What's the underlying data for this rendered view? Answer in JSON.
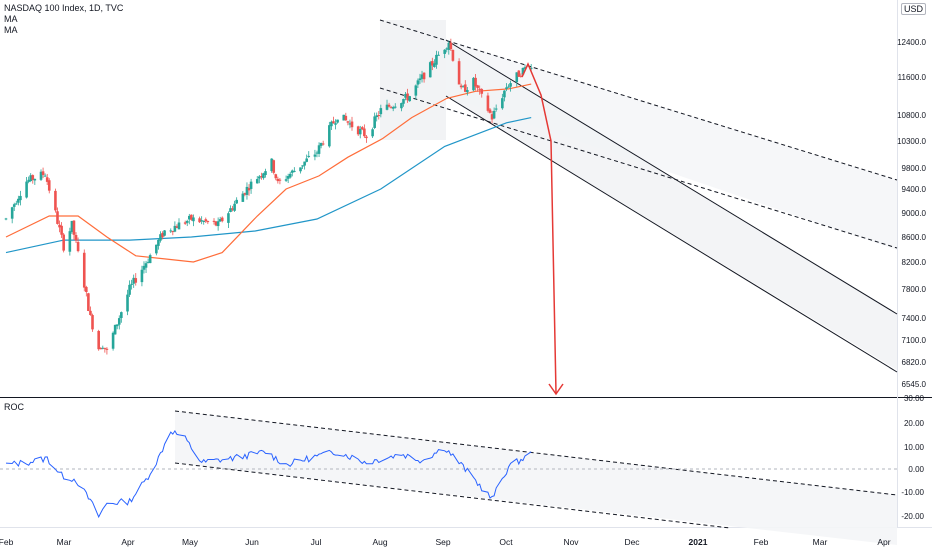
{
  "header": {
    "symbol_line": "NASDAQ 100 Index, 1D, TVC",
    "ma1_label": "MA",
    "ma2_label": "MA",
    "currency_badge": "USD",
    "roc_label": "ROC"
  },
  "colors": {
    "up": "#26a69a",
    "down": "#ef5350",
    "ma_fast": "#ff6d3a",
    "ma_slow": "#2196c8",
    "roc_line": "#2962ff",
    "arrow": "#e53935",
    "channel_line": "#131722",
    "axis_text": "#131722",
    "zero_line": "#b2b5be",
    "fill": "#eeeff1"
  },
  "chart_data": [
    {
      "type": "candlestick",
      "title": "NASDAQ 100 Index, 1D, TVC",
      "y_ticks": [
        "12400.0",
        "11600.0",
        "10800.0",
        "10300.0",
        "9800.0",
        "9400.0",
        "9000.0",
        "8600.0",
        "8200.0",
        "7800.0",
        "7400.0",
        "7100.0",
        "6820.0",
        "6545.0"
      ],
      "x_ticks": [
        "Feb",
        "Mar",
        "Apr",
        "May",
        "Jun",
        "Jul",
        "Aug",
        "Sep",
        "Oct",
        "Nov",
        "Dec",
        "2021",
        "Feb",
        "Mar",
        "Apr"
      ],
      "price_path": [
        [
          "2020-01-31",
          8900
        ],
        [
          "2020-02-10",
          9550
        ],
        [
          "2020-02-19",
          9700
        ],
        [
          "2020-02-21",
          9400
        ],
        [
          "2020-02-28",
          8450
        ],
        [
          "2020-03-03",
          8800
        ],
        [
          "2020-03-12",
          7400
        ],
        [
          "2020-03-16",
          7000
        ],
        [
          "2020-03-18",
          7050
        ],
        [
          "2020-03-20",
          6950
        ],
        [
          "2020-03-31",
          7800
        ],
        [
          "2020-04-09",
          8250
        ],
        [
          "2020-04-17",
          8700
        ],
        [
          "2020-04-30",
          8900
        ],
        [
          "2020-05-13",
          8800
        ],
        [
          "2020-05-29",
          9500
        ],
        [
          "2020-06-08",
          9900
        ],
        [
          "2020-06-11",
          9500
        ],
        [
          "2020-06-30",
          10100
        ],
        [
          "2020-07-10",
          10800
        ],
        [
          "2020-07-24",
          10400
        ],
        [
          "2020-07-31",
          10900
        ],
        [
          "2020-08-14",
          11200
        ],
        [
          "2020-08-28",
          12100
        ],
        [
          "2020-09-02",
          12420
        ],
        [
          "2020-09-08",
          11300
        ],
        [
          "2020-09-14",
          11500
        ],
        [
          "2020-09-23",
          10750
        ],
        [
          "2020-09-30",
          11400
        ],
        [
          "2020-10-09",
          11800
        ],
        [
          "2020-10-12",
          11900
        ]
      ],
      "ma_fast": [
        [
          "2020-01-31",
          8600
        ],
        [
          "2020-02-21",
          8950
        ],
        [
          "2020-03-06",
          8950
        ],
        [
          "2020-03-20",
          8600
        ],
        [
          "2020-04-03",
          8300
        ],
        [
          "2020-04-17",
          8250
        ],
        [
          "2020-05-01",
          8200
        ],
        [
          "2020-05-15",
          8350
        ],
        [
          "2020-06-01",
          8950
        ],
        [
          "2020-06-15",
          9400
        ],
        [
          "2020-07-01",
          9650
        ],
        [
          "2020-07-15",
          10000
        ],
        [
          "2020-08-01",
          10350
        ],
        [
          "2020-08-15",
          10750
        ],
        [
          "2020-09-01",
          11150
        ],
        [
          "2020-09-15",
          11300
        ],
        [
          "2020-10-01",
          11350
        ],
        [
          "2020-10-12",
          11450
        ]
      ],
      "ma_slow": [
        [
          "2020-01-31",
          8350
        ],
        [
          "2020-02-28",
          8550
        ],
        [
          "2020-03-31",
          8550
        ],
        [
          "2020-04-30",
          8600
        ],
        [
          "2020-05-31",
          8700
        ],
        [
          "2020-06-30",
          8900
        ],
        [
          "2020-07-31",
          9400
        ],
        [
          "2020-08-31",
          10200
        ],
        [
          "2020-09-30",
          10650
        ],
        [
          "2020-10-12",
          10750
        ]
      ]
    },
    {
      "type": "line",
      "title": "ROC",
      "y_ticks": [
        "30.00",
        "20.00",
        "10.00",
        "0.00",
        "-10.00",
        "-20.00"
      ],
      "ylim": [
        -25,
        30
      ],
      "series": [
        {
          "values": [
            [
              "2020-01-31",
              2
            ],
            [
              "2020-02-10",
              3
            ],
            [
              "2020-02-20",
              5
            ],
            [
              "2020-02-27",
              -3
            ],
            [
              "2020-03-05",
              -5
            ],
            [
              "2020-03-12",
              -15
            ],
            [
              "2020-03-16",
              -22
            ],
            [
              "2020-03-20",
              -16
            ],
            [
              "2020-03-31",
              -15
            ],
            [
              "2020-04-08",
              -5
            ],
            [
              "2020-04-14",
              5
            ],
            [
              "2020-04-20",
              18
            ],
            [
              "2020-04-27",
              14
            ],
            [
              "2020-05-05",
              3
            ],
            [
              "2020-05-20",
              5
            ],
            [
              "2020-06-05",
              8
            ],
            [
              "2020-06-15",
              2
            ],
            [
              "2020-06-30",
              6
            ],
            [
              "2020-07-10",
              8
            ],
            [
              "2020-07-24",
              3
            ],
            [
              "2020-08-10",
              7
            ],
            [
              "2020-08-20",
              4
            ],
            [
              "2020-08-31",
              10
            ],
            [
              "2020-09-08",
              2
            ],
            [
              "2020-09-23",
              -14
            ],
            [
              "2020-10-01",
              1
            ],
            [
              "2020-10-12",
              7
            ]
          ]
        }
      ]
    }
  ]
}
